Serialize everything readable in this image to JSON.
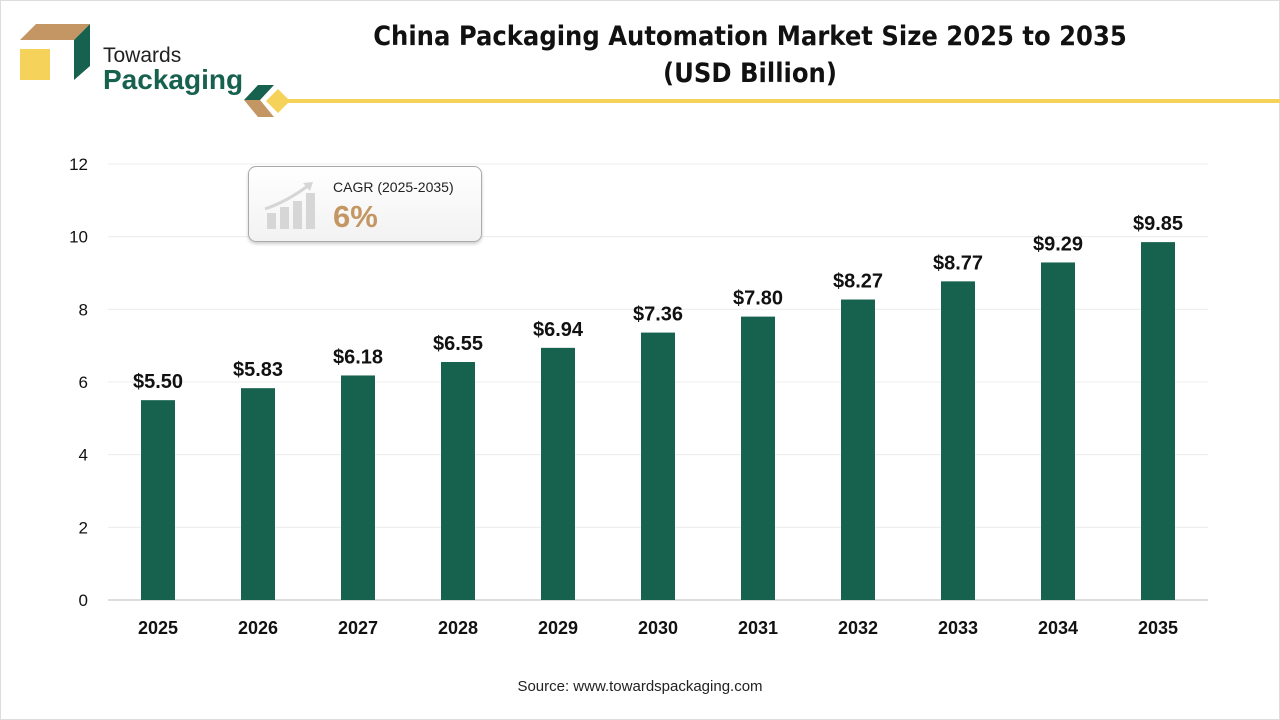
{
  "brand": {
    "line1": "Towards",
    "line2": "Packaging",
    "colors": {
      "green": "#17614f",
      "tan": "#c49663",
      "yellow": "#f5d35a"
    }
  },
  "header": {
    "title_line1": "China Packaging Automation Market Size 2025 to 2035",
    "title_line2": "(USD Billion)"
  },
  "cagr": {
    "label": "CAGR (2025-2035)",
    "value": "6%",
    "icon": "growth-chart-icon"
  },
  "source": "Source: www.towardspackaging.com",
  "chart_data": {
    "type": "bar",
    "title": "China Packaging Automation Market Size 2025 to 2035 (USD Billion)",
    "categories": [
      "2025",
      "2026",
      "2027",
      "2028",
      "2029",
      "2030",
      "2031",
      "2032",
      "2033",
      "2034",
      "2035"
    ],
    "values": [
      5.5,
      5.83,
      6.18,
      6.55,
      6.94,
      7.36,
      7.8,
      8.27,
      8.77,
      9.29,
      9.85
    ],
    "data_labels": [
      "$5.50",
      "$5.83",
      "$6.18",
      "$6.55",
      "$6.94",
      "$7.36",
      "$7.80",
      "$8.27",
      "$8.77",
      "$9.29",
      "$9.85"
    ],
    "ylim": [
      0,
      12
    ],
    "yticks": [
      0,
      2,
      4,
      6,
      8,
      10,
      12
    ],
    "grid": true,
    "bar_color": "#17614f"
  }
}
